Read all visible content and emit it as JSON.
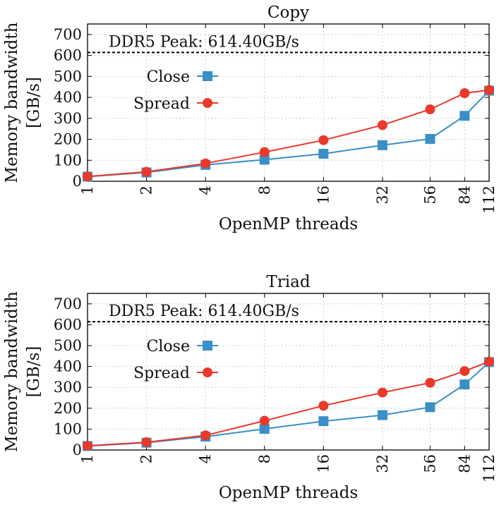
{
  "chart_data": [
    {
      "type": "line",
      "title": "Copy",
      "xlabel": "OpenMP threads",
      "ylabel": "Memory bandwidth",
      "ylabel_unit": "[GB/s]",
      "categories": [
        "1",
        "2",
        "4",
        "8",
        "16",
        "32",
        "56",
        "84",
        "112"
      ],
      "x": [
        1,
        2,
        4,
        8,
        16,
        32,
        56,
        84,
        112
      ],
      "xscale": "log2",
      "ylim": [
        0,
        750
      ],
      "yticks": [
        "0",
        "100",
        "200",
        "300",
        "400",
        "500",
        "600",
        "700"
      ],
      "grid": true,
      "peak": {
        "label": "DDR5 Peak: 614.40GB/s",
        "value": 614.4
      },
      "legend_position": "center-left",
      "series": [
        {
          "name": "Close",
          "color": "#3a8fc7",
          "marker": "square",
          "values": [
            22,
            42,
            78,
            103,
            131,
            172,
            202,
            312,
            432
          ]
        },
        {
          "name": "Spread",
          "color": "#e8392b",
          "marker": "circle",
          "values": [
            23,
            45,
            85,
            139,
            196,
            268,
            343,
            420,
            435
          ]
        }
      ]
    },
    {
      "type": "line",
      "title": "Triad",
      "xlabel": "OpenMP threads",
      "ylabel": "Memory bandwidth",
      "ylabel_unit": "[GB/s]",
      "categories": [
        "1",
        "2",
        "4",
        "8",
        "16",
        "32",
        "56",
        "84",
        "112"
      ],
      "x": [
        1,
        2,
        4,
        8,
        16,
        32,
        56,
        84,
        112
      ],
      "xscale": "log2",
      "ylim": [
        0,
        750
      ],
      "yticks": [
        "0",
        "100",
        "200",
        "300",
        "400",
        "500",
        "600",
        "700"
      ],
      "grid": true,
      "peak": {
        "label": "DDR5 Peak: 614.40GB/s",
        "value": 614.4
      },
      "legend_position": "center-left",
      "series": [
        {
          "name": "Close",
          "color": "#3a8fc7",
          "marker": "square",
          "values": [
            19,
            35,
            64,
            101,
            138,
            167,
            205,
            314,
            421
          ]
        },
        {
          "name": "Spread",
          "color": "#e8392b",
          "marker": "circle",
          "values": [
            20,
            37,
            70,
            140,
            212,
            275,
            322,
            378,
            423
          ]
        }
      ]
    }
  ]
}
